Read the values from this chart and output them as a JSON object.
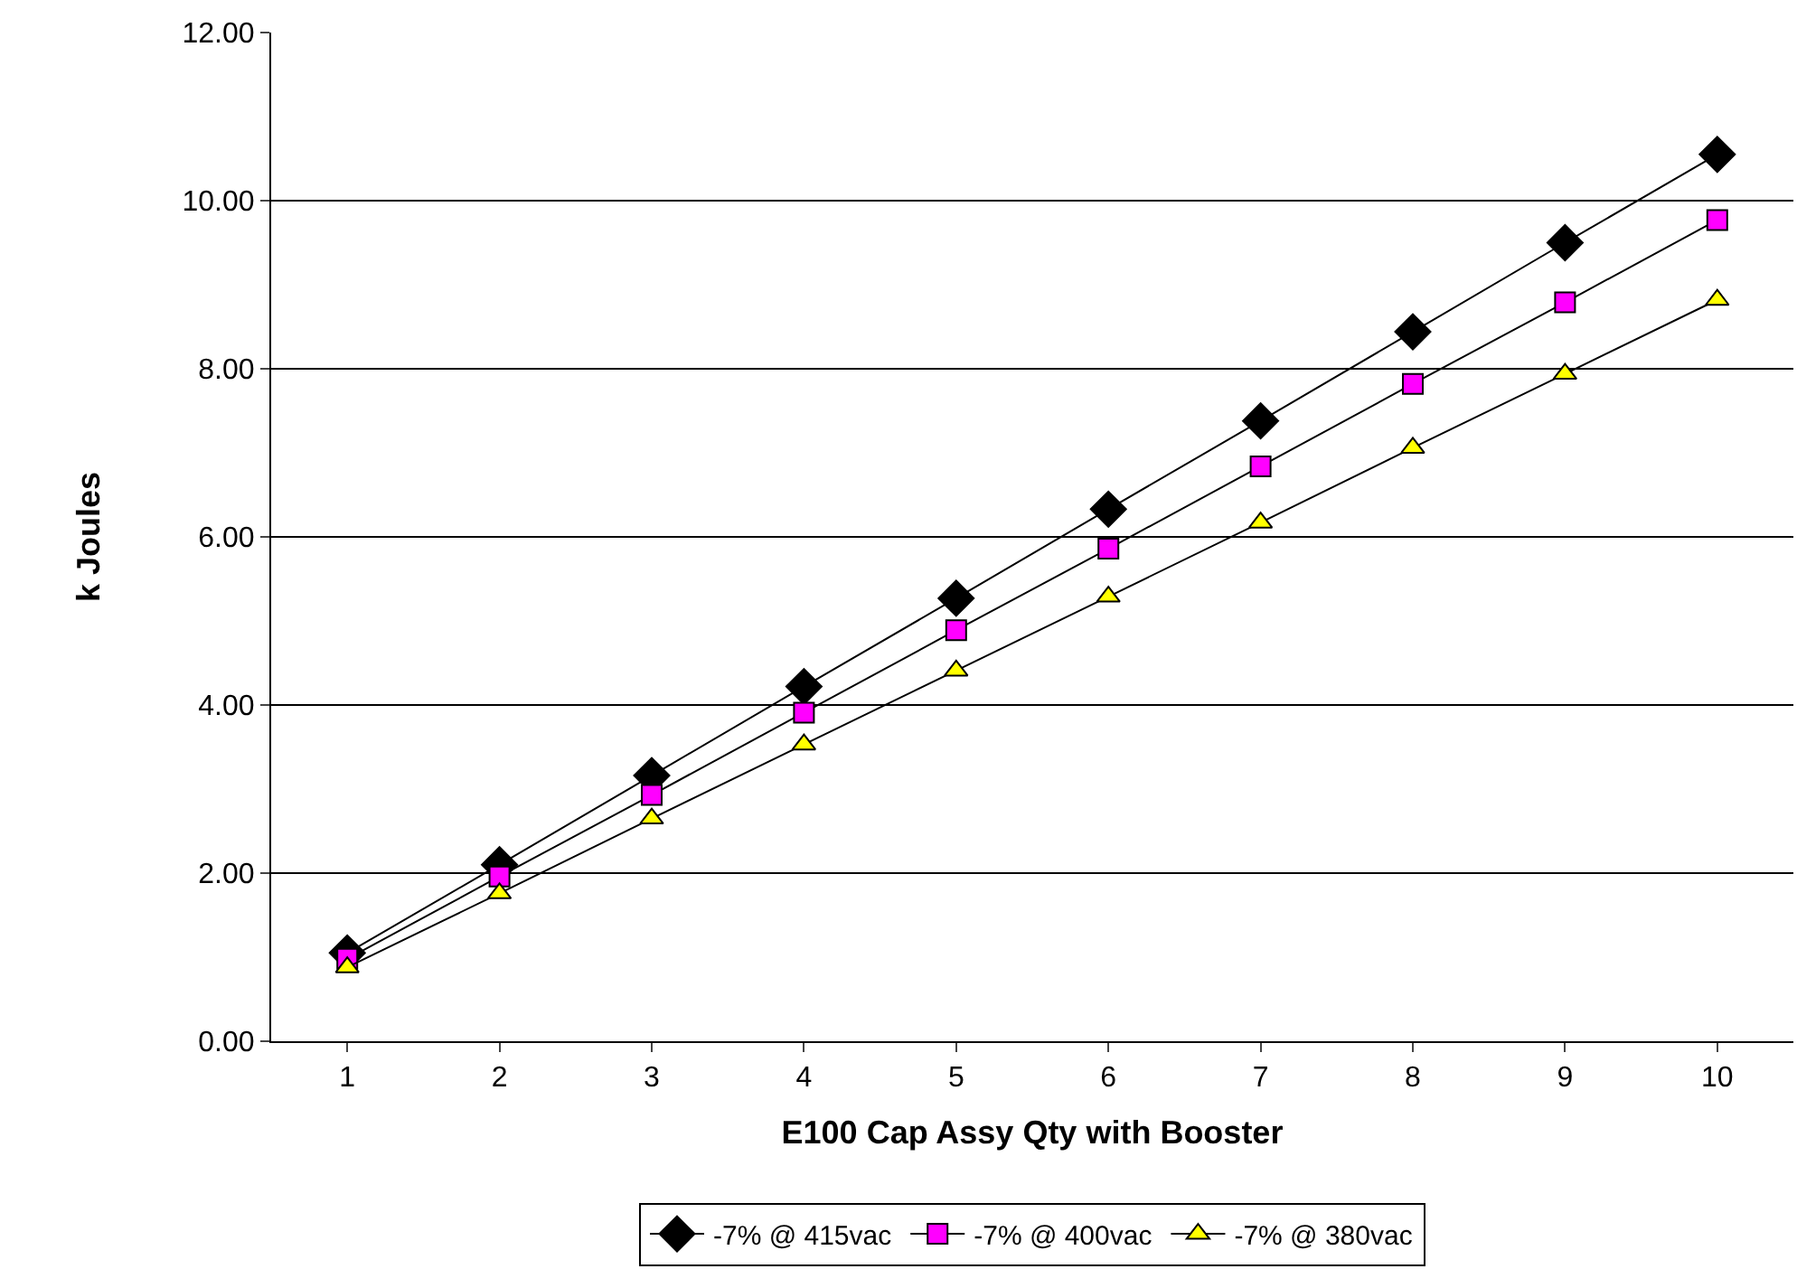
{
  "chart_data": {
    "type": "line",
    "xlabel": "E100 Cap Assy Qty with Booster",
    "ylabel": "k Joules",
    "categories": [
      "1",
      "2",
      "3",
      "4",
      "5",
      "6",
      "7",
      "8",
      "9",
      "10"
    ],
    "series": [
      {
        "name": "-7% @ 415vac",
        "color": "#000000",
        "marker": "diamond",
        "values": [
          1.05,
          2.1,
          3.16,
          4.22,
          5.27,
          6.33,
          7.38,
          8.44,
          9.5,
          10.55
        ]
      },
      {
        "name": "-7% @ 400vac",
        "color": "#ff00ff",
        "marker": "square",
        "values": [
          0.98,
          1.96,
          2.93,
          3.91,
          4.89,
          5.86,
          6.84,
          7.82,
          8.79,
          9.77
        ]
      },
      {
        "name": "-7% @ 380vac",
        "color": "#ffff00",
        "marker": "triangle",
        "values": [
          0.88,
          1.76,
          2.65,
          3.53,
          4.41,
          5.29,
          6.17,
          7.06,
          7.94,
          8.82
        ]
      }
    ],
    "ylim": [
      0,
      12
    ],
    "yticks": [
      {
        "value": 0,
        "label": "0.00"
      },
      {
        "value": 2,
        "label": "2.00"
      },
      {
        "value": 4,
        "label": "4.00"
      },
      {
        "value": 6,
        "label": "6.00"
      },
      {
        "value": 8,
        "label": "8.00"
      },
      {
        "value": 10,
        "label": "10.00"
      },
      {
        "value": 12,
        "label": "12.00"
      }
    ],
    "grid": "y",
    "legend": "bottom",
    "line_style": "solid"
  }
}
